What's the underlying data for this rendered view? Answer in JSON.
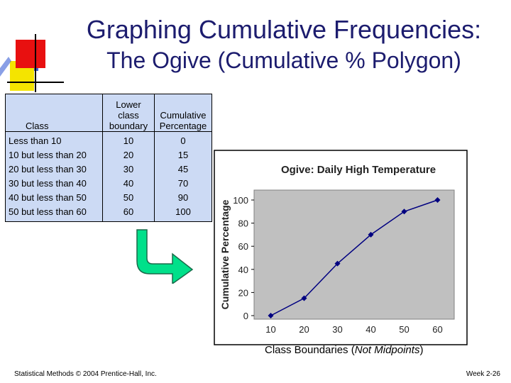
{
  "title": "Graphing Cumulative Frequencies:",
  "subtitle": "The Ogive (Cumulative % Polygon)",
  "table": {
    "headers": {
      "class": "Class",
      "lower_l1": "Lower",
      "lower_l2": "class",
      "lower_l3": "boundary",
      "cum_l1": "Cumulative",
      "cum_l2": "Percentage"
    },
    "rows": [
      {
        "class": "Less than 10",
        "lower": "10",
        "cum": "0"
      },
      {
        "class": "10 but less than 20",
        "lower": "20",
        "cum": "15"
      },
      {
        "class": "20 but less than 30",
        "lower": "30",
        "cum": "45"
      },
      {
        "class": "30 but less than 40",
        "lower": "40",
        "cum": "70"
      },
      {
        "class": "40 but less than 50",
        "lower": "50",
        "cum": "90"
      },
      {
        "class": "50 but less than 60",
        "lower": "60",
        "cum": "100"
      }
    ]
  },
  "chart_data": {
    "type": "line",
    "title": "Ogive: Daily High Temperature",
    "ylabel": "Cumulative Percentage",
    "x": [
      10,
      20,
      30,
      40,
      50,
      60
    ],
    "series": [
      {
        "values": [
          0,
          15,
          45,
          70,
          90,
          100
        ]
      }
    ],
    "yticks": [
      0,
      20,
      40,
      60,
      80,
      100
    ],
    "ylim": [
      0,
      100
    ],
    "plot_background": "#c0c0c0",
    "line_color": "#000080"
  },
  "caption": {
    "pre": "Class Boundaries (",
    "italic": "Not Midpoints",
    "post": ")"
  },
  "footer": {
    "left": "Statistical Methods © 2004 Prentice-Hall, Inc.",
    "right": "Week 2-26"
  },
  "colors": {
    "title": "#1c1c6e",
    "table_bg": "#ccdaf4",
    "arrow": "#00e08a"
  }
}
